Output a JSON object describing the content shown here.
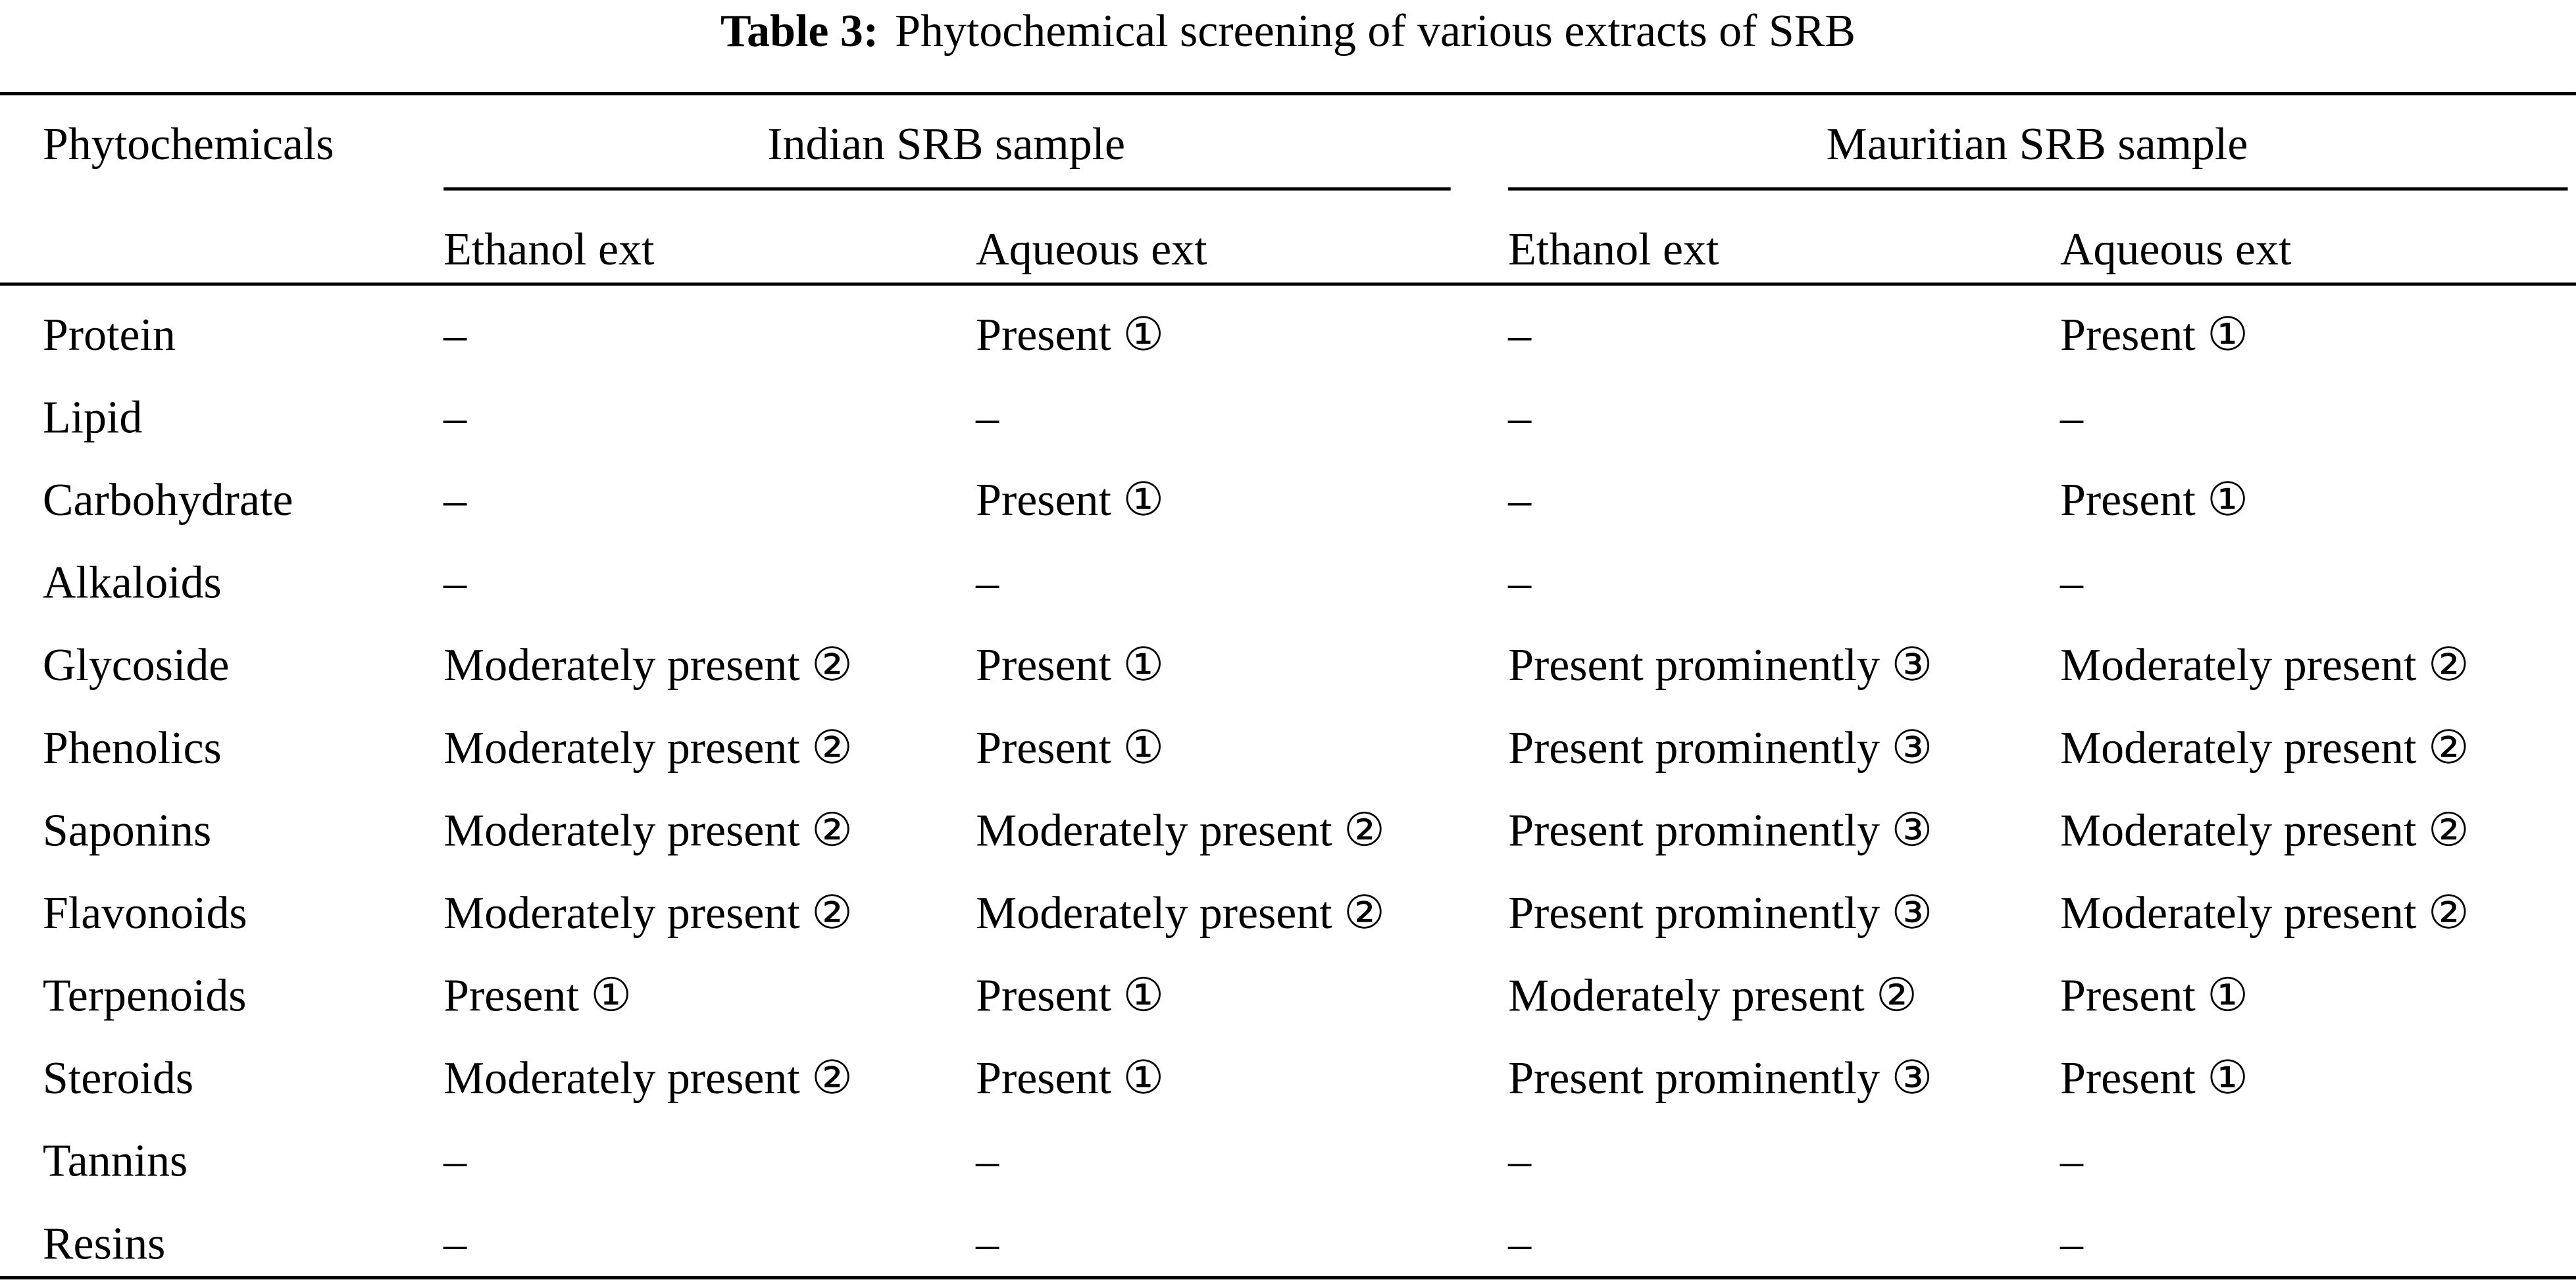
{
  "title": {
    "label": "Table 3:",
    "text": "Phytochemical screening of various extracts of SRB"
  },
  "table": {
    "header": {
      "first": "Phytochemicals",
      "groups": [
        "Indian SRB sample",
        "Mauritian SRB sample"
      ],
      "subheaders": [
        "Ethanol ext",
        "Aqueous ext",
        "Ethanol ext",
        "Aqueous ext"
      ]
    },
    "rows": [
      [
        "Protein",
        "–",
        "Present ①",
        "–",
        "Present ①"
      ],
      [
        "Lipid",
        "–",
        "–",
        "–",
        "–"
      ],
      [
        "Carbohydrate",
        "–",
        "Present ①",
        "–",
        "Present ①"
      ],
      [
        "Alkaloids",
        "–",
        "–",
        "–",
        "–"
      ],
      [
        "Glycoside",
        "Moderately present ②",
        "Present ①",
        "Present prominently ③",
        "Moderately present ②"
      ],
      [
        "Phenolics",
        "Moderately present ②",
        "Present ①",
        "Present prominently ③",
        "Moderately present ②"
      ],
      [
        "Saponins",
        "Moderately present ②",
        "Moderately present ②",
        "Present prominently ③",
        "Moderately present ②"
      ],
      [
        "Flavonoids",
        "Moderately present ②",
        "Moderately present ②",
        "Present prominently ③",
        "Moderately present ②"
      ],
      [
        "Terpenoids",
        "Present ①",
        "Present ①",
        "Moderately present ②",
        "Present ①"
      ],
      [
        "Steroids",
        "Moderately present ②",
        "Present ①",
        "Present prominently ③",
        "Present ①"
      ],
      [
        "Tannins",
        "–",
        "–",
        "–",
        "–"
      ],
      [
        "Resins",
        "–",
        "–",
        "–",
        "–"
      ]
    ]
  }
}
